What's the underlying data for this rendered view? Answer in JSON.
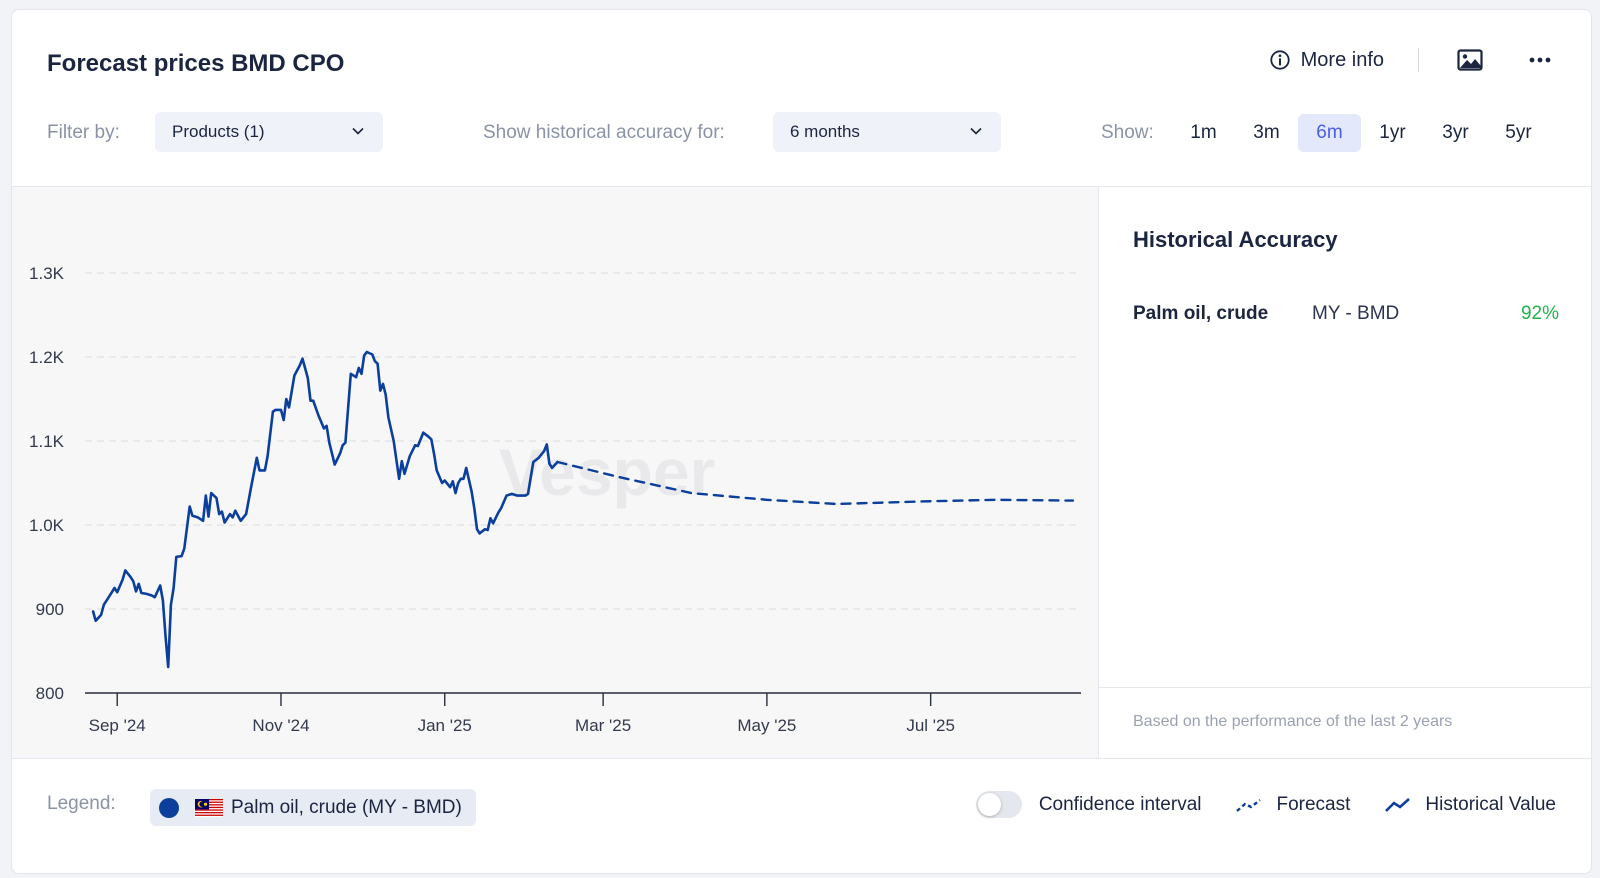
{
  "header": {
    "title": "Forecast prices BMD CPO",
    "more_info_label": "More info"
  },
  "filters": {
    "filter_by_label": "Filter by:",
    "products_value": "Products (1)",
    "accuracy_label": "Show historical accuracy for:",
    "accuracy_value": "6 months",
    "show_label": "Show:",
    "ranges": [
      "1m",
      "3m",
      "6m",
      "1yr",
      "3yr",
      "5yr"
    ],
    "active_range": "6m"
  },
  "side_panel": {
    "title": "Historical Accuracy",
    "rows": [
      {
        "name": "Palm oil, crude",
        "market": "MY - BMD",
        "value": "92%"
      }
    ],
    "footnote": "Based on the performance of the last 2 years"
  },
  "legend": {
    "label": "Legend:",
    "item": "Palm oil, crude (MY - BMD)",
    "confidence_label": "Confidence interval",
    "confidence_enabled": false,
    "forecast_label": "Forecast",
    "historical_label": "Historical Value"
  },
  "colors": {
    "series": "#0b3f9c",
    "accent": "#4b5ee8",
    "positive": "#22b24c"
  },
  "chart_data": {
    "type": "line",
    "watermark": "Vesper",
    "x_ticks": [
      "Sep '24",
      "Nov '24",
      "Jan '25",
      "Mar '25",
      "May '25",
      "Jul '25"
    ],
    "y_ticks": [
      "800",
      "900",
      "1.0K",
      "1.1K",
      "1.2K",
      "1.3K"
    ],
    "ylim": [
      800,
      1300
    ],
    "xlim": [
      "2024-08-20",
      "2025-08-26"
    ],
    "grid": true,
    "series": [
      {
        "name": "Historical Value",
        "style": "solid",
        "points": [
          [
            "2024-08-23",
            897
          ],
          [
            "2024-08-24",
            886
          ],
          [
            "2024-08-26",
            893
          ],
          [
            "2024-08-27",
            905
          ],
          [
            "2024-08-29",
            915
          ],
          [
            "2024-08-31",
            925
          ],
          [
            "2024-09-01",
            920
          ],
          [
            "2024-09-03",
            935
          ],
          [
            "2024-09-04",
            946
          ],
          [
            "2024-09-06",
            938
          ],
          [
            "2024-09-07",
            933
          ],
          [
            "2024-09-08",
            921
          ],
          [
            "2024-09-09",
            930
          ],
          [
            "2024-09-10",
            919
          ],
          [
            "2024-09-12",
            918
          ],
          [
            "2024-09-14",
            916
          ],
          [
            "2024-09-15",
            914
          ],
          [
            "2024-09-17",
            928
          ],
          [
            "2024-09-18",
            910
          ],
          [
            "2024-09-19",
            868
          ],
          [
            "2024-09-20",
            831
          ],
          [
            "2024-09-21",
            905
          ],
          [
            "2024-09-22",
            925
          ],
          [
            "2024-09-23",
            962
          ],
          [
            "2024-09-25",
            963
          ],
          [
            "2024-09-26",
            972
          ],
          [
            "2024-09-28",
            1022
          ],
          [
            "2024-09-29",
            1011
          ],
          [
            "2024-10-01",
            1009
          ],
          [
            "2024-10-03",
            1005
          ],
          [
            "2024-10-04",
            1035
          ],
          [
            "2024-10-05",
            1010
          ],
          [
            "2024-10-06",
            1038
          ],
          [
            "2024-10-08",
            1032
          ],
          [
            "2024-10-09",
            1013
          ],
          [
            "2024-10-10",
            1016
          ],
          [
            "2024-10-11",
            1003
          ],
          [
            "2024-10-13",
            1013
          ],
          [
            "2024-10-14",
            1009
          ],
          [
            "2024-10-15",
            1017
          ],
          [
            "2024-10-17",
            1005
          ],
          [
            "2024-10-19",
            1013
          ],
          [
            "2024-10-21",
            1047
          ],
          [
            "2024-10-23",
            1080
          ],
          [
            "2024-10-24",
            1065
          ],
          [
            "2024-10-26",
            1065
          ],
          [
            "2024-10-27",
            1082
          ],
          [
            "2024-10-29",
            1135
          ],
          [
            "2024-10-30",
            1137
          ],
          [
            "2024-11-01",
            1137
          ],
          [
            "2024-11-02",
            1125
          ],
          [
            "2024-11-03",
            1150
          ],
          [
            "2024-11-04",
            1140
          ],
          [
            "2024-11-06",
            1178
          ],
          [
            "2024-11-08",
            1190
          ],
          [
            "2024-11-09",
            1198
          ],
          [
            "2024-11-11",
            1175
          ],
          [
            "2024-11-12",
            1148
          ],
          [
            "2024-11-13",
            1148
          ],
          [
            "2024-11-15",
            1130
          ],
          [
            "2024-11-17",
            1115
          ],
          [
            "2024-11-18",
            1118
          ],
          [
            "2024-11-19",
            1098
          ],
          [
            "2024-11-21",
            1072
          ],
          [
            "2024-11-23",
            1085
          ],
          [
            "2024-11-24",
            1095
          ],
          [
            "2024-11-25",
            1098
          ],
          [
            "2024-11-27",
            1180
          ],
          [
            "2024-11-29",
            1176
          ],
          [
            "2024-11-30",
            1187
          ],
          [
            "2024-12-01",
            1180
          ],
          [
            "2024-12-02",
            1202
          ],
          [
            "2024-12-03",
            1206
          ],
          [
            "2024-12-05",
            1203
          ],
          [
            "2024-12-06",
            1195
          ],
          [
            "2024-12-07",
            1192
          ],
          [
            "2024-12-08",
            1160
          ],
          [
            "2024-12-09",
            1168
          ],
          [
            "2024-12-10",
            1155
          ],
          [
            "2024-12-11",
            1128
          ],
          [
            "2024-12-13",
            1100
          ],
          [
            "2024-12-15",
            1055
          ],
          [
            "2024-12-16",
            1076
          ],
          [
            "2024-12-17",
            1061
          ],
          [
            "2024-12-19",
            1082
          ],
          [
            "2024-12-21",
            1095
          ],
          [
            "2024-12-22",
            1094
          ],
          [
            "2024-12-24",
            1110
          ],
          [
            "2024-12-26",
            1105
          ],
          [
            "2024-12-27",
            1102
          ],
          [
            "2024-12-28",
            1085
          ],
          [
            "2024-12-29",
            1065
          ],
          [
            "2024-12-31",
            1050
          ],
          [
            "2025-01-01",
            1053
          ],
          [
            "2025-01-03",
            1045
          ],
          [
            "2025-01-04",
            1052
          ],
          [
            "2025-01-05",
            1038
          ],
          [
            "2025-01-06",
            1050
          ],
          [
            "2025-01-07",
            1055
          ],
          [
            "2025-01-08",
            1055
          ],
          [
            "2025-01-09",
            1068
          ],
          [
            "2025-01-11",
            1040
          ],
          [
            "2025-01-12",
            1020
          ],
          [
            "2025-01-13",
            995
          ],
          [
            "2025-01-14",
            990
          ],
          [
            "2025-01-16",
            995
          ],
          [
            "2025-01-17",
            994
          ],
          [
            "2025-01-18",
            1008
          ],
          [
            "2025-01-19",
            1002
          ],
          [
            "2025-01-21",
            1015
          ],
          [
            "2025-01-22",
            1020
          ],
          [
            "2025-01-24",
            1035
          ],
          [
            "2025-01-26",
            1037
          ],
          [
            "2025-01-28",
            1035
          ],
          [
            "2025-01-31",
            1035
          ],
          [
            "2025-02-01",
            1037
          ],
          [
            "2025-02-03",
            1075
          ],
          [
            "2025-02-05",
            1080
          ],
          [
            "2025-02-07",
            1088
          ],
          [
            "2025-02-08",
            1096
          ],
          [
            "2025-02-09",
            1073
          ],
          [
            "2025-02-10",
            1068
          ],
          [
            "2025-02-12",
            1075
          ]
        ]
      },
      {
        "name": "Forecast",
        "style": "dashed",
        "points": [
          [
            "2025-02-12",
            1075
          ],
          [
            "2025-03-07",
            1057
          ],
          [
            "2025-04-03",
            1038
          ],
          [
            "2025-05-01",
            1030
          ],
          [
            "2025-05-27",
            1025
          ],
          [
            "2025-06-27",
            1028
          ],
          [
            "2025-07-25",
            1030
          ],
          [
            "2025-08-23",
            1029
          ]
        ]
      }
    ]
  }
}
